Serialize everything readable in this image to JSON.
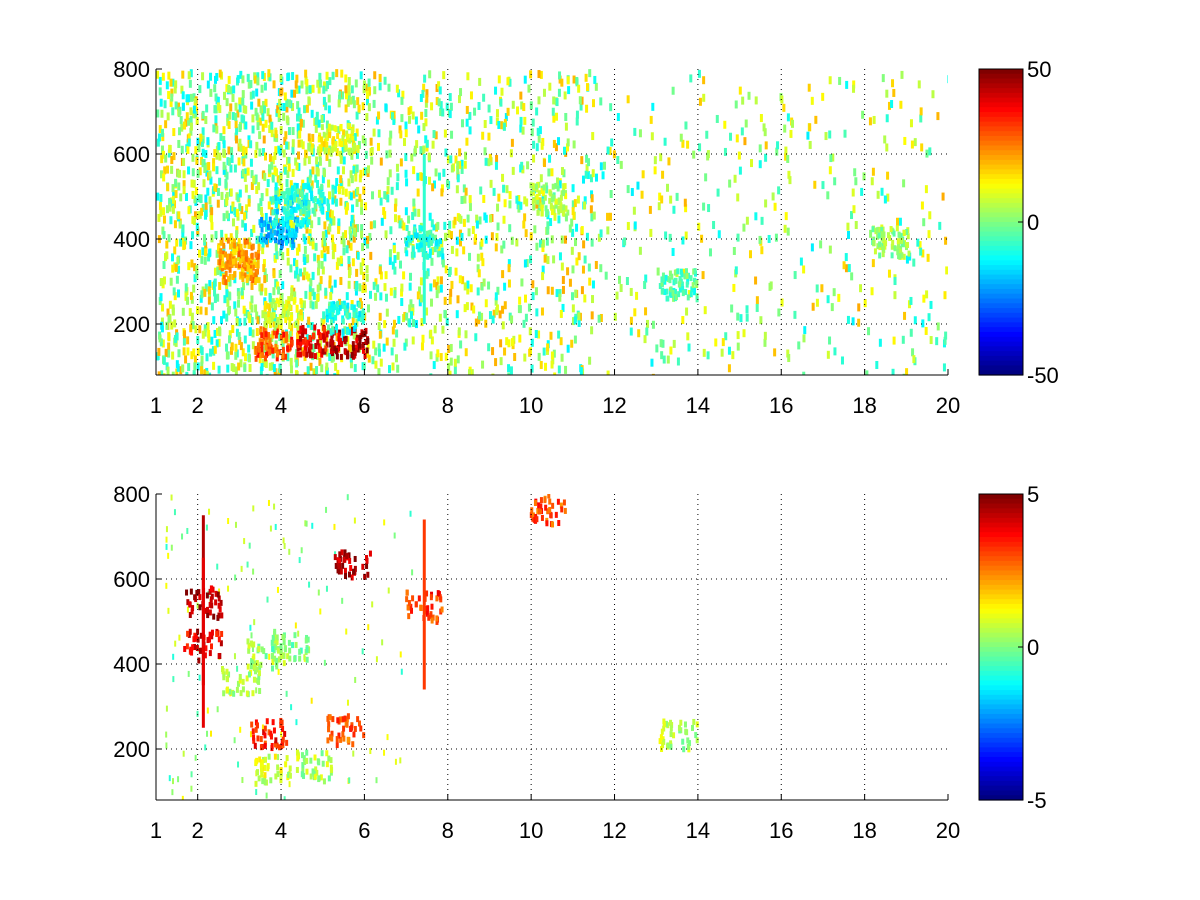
{
  "chart_data": [
    {
      "type": "heatmap",
      "title": "",
      "xlabel": "",
      "ylabel": "",
      "xlim": [
        1,
        20
      ],
      "ylim": [
        80,
        800
      ],
      "x_ticks": [
        "1",
        "2",
        "4",
        "6",
        "8",
        "10",
        "12",
        "14",
        "16",
        "18",
        "20"
      ],
      "y_ticks": [
        "200",
        "400",
        "600",
        "800"
      ],
      "grid": true,
      "colormap": "jet",
      "colorbar": {
        "min": -50,
        "max": 50,
        "tick_labels": [
          "50",
          "0",
          "-50"
        ]
      },
      "description_points": [
        {
          "x": 2.9,
          "y": 370,
          "value": 20
        },
        {
          "x": 3.0,
          "y": 340,
          "value": 22
        },
        {
          "x": 3.9,
          "y": 420,
          "value": -20
        },
        {
          "x": 4.2,
          "y": 470,
          "value": -12
        },
        {
          "x": 4.5,
          "y": 500,
          "value": -8
        },
        {
          "x": 3.8,
          "y": 160,
          "value": 30
        },
        {
          "x": 4.8,
          "y": 165,
          "value": 38
        },
        {
          "x": 5.6,
          "y": 160,
          "value": 45
        },
        {
          "x": 5.5,
          "y": 220,
          "value": -10
        },
        {
          "x": 4.0,
          "y": 230,
          "value": 10
        },
        {
          "x": 5.3,
          "y": 640,
          "value": 10
        },
        {
          "x": 7.4,
          "y": 400,
          "value": -8
        },
        {
          "x": 10.4,
          "y": 500,
          "value": 5
        },
        {
          "x": 13.5,
          "y": 300,
          "value": -4
        },
        {
          "x": 18.6,
          "y": 400,
          "value": 2
        }
      ]
    },
    {
      "type": "heatmap",
      "title": "",
      "xlabel": "",
      "ylabel": "",
      "xlim": [
        1,
        20
      ],
      "ylim": [
        80,
        800
      ],
      "x_ticks": [
        "1",
        "2",
        "4",
        "6",
        "8",
        "10",
        "12",
        "14",
        "16",
        "18",
        "20"
      ],
      "y_ticks": [
        "200",
        "400",
        "600",
        "800"
      ],
      "grid": true,
      "colormap": "jet",
      "colorbar": {
        "min": -5,
        "max": 5,
        "tick_labels": [
          "5",
          "0",
          "-5"
        ]
      },
      "description_points": [
        {
          "x": 2.1,
          "y": 550,
          "value": 4.5
        },
        {
          "x": 2.1,
          "y": 450,
          "value": 4
        },
        {
          "x": 3.0,
          "y": 370,
          "value": 0.5
        },
        {
          "x": 3.6,
          "y": 430,
          "value": 0.3
        },
        {
          "x": 4.2,
          "y": 450,
          "value": 0
        },
        {
          "x": 3.8,
          "y": 160,
          "value": 0.8
        },
        {
          "x": 4.8,
          "y": 165,
          "value": 0.4
        },
        {
          "x": 5.5,
          "y": 250,
          "value": 3
        },
        {
          "x": 3.7,
          "y": 240,
          "value": 3.5
        },
        {
          "x": 5.7,
          "y": 640,
          "value": 4.5
        },
        {
          "x": 7.4,
          "y": 540,
          "value": 3.2
        },
        {
          "x": 10.4,
          "y": 770,
          "value": 3
        },
        {
          "x": 13.5,
          "y": 240,
          "value": 0.5
        }
      ]
    }
  ]
}
